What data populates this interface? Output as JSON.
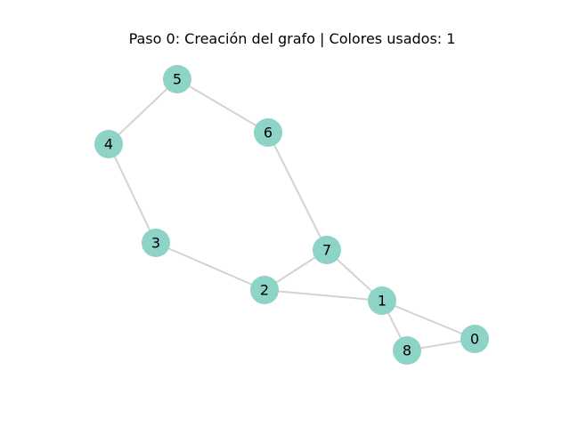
{
  "title": "Paso 0: Creación del grafo | Colores usados: 1",
  "colors": {
    "node_fill": "#8ed3c7",
    "edge_stroke": "#d3d3d3",
    "background": "#ffffff"
  },
  "nodes": [
    {
      "id": "0",
      "label": "0"
    },
    {
      "id": "1",
      "label": "1"
    },
    {
      "id": "2",
      "label": "2"
    },
    {
      "id": "3",
      "label": "3"
    },
    {
      "id": "4",
      "label": "4"
    },
    {
      "id": "5",
      "label": "5"
    },
    {
      "id": "6",
      "label": "6"
    },
    {
      "id": "7",
      "label": "7"
    },
    {
      "id": "8",
      "label": "8"
    }
  ],
  "edges": [
    {
      "source": "5",
      "target": "4"
    },
    {
      "source": "5",
      "target": "6"
    },
    {
      "source": "4",
      "target": "3"
    },
    {
      "source": "6",
      "target": "7"
    },
    {
      "source": "3",
      "target": "2"
    },
    {
      "source": "2",
      "target": "7"
    },
    {
      "source": "2",
      "target": "1"
    },
    {
      "source": "7",
      "target": "1"
    },
    {
      "source": "1",
      "target": "0"
    },
    {
      "source": "1",
      "target": "8"
    },
    {
      "source": "8",
      "target": "0"
    }
  ]
}
